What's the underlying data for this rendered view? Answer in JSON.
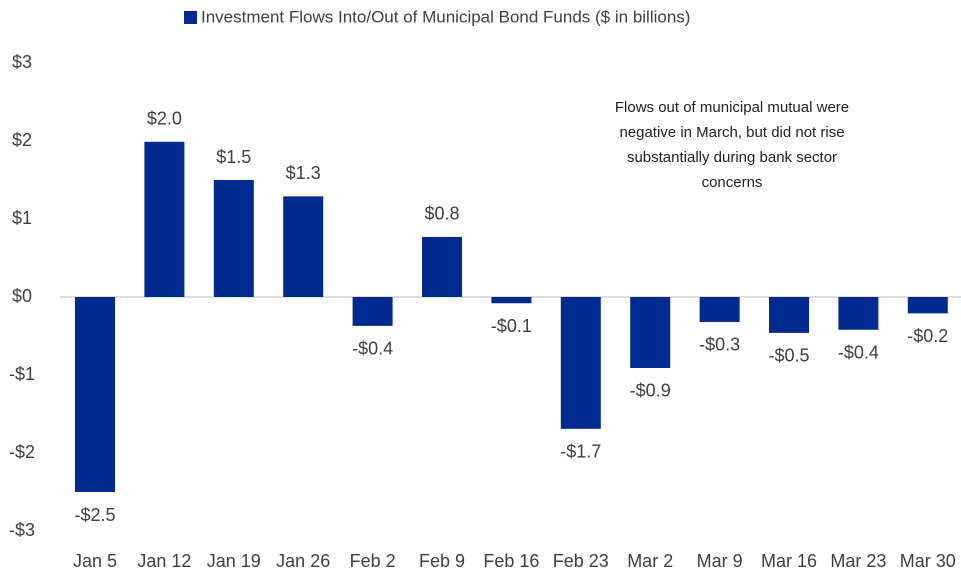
{
  "chart_data": {
    "type": "bar",
    "categories": [
      "Jan 5",
      "Jan 12",
      "Jan 19",
      "Jan 26",
      "Feb 2",
      "Feb 9",
      "Feb 16",
      "Feb 23",
      "Mar 2",
      "Mar 9",
      "Mar 16",
      "Mar 23",
      "Mar 30"
    ],
    "series": [
      {
        "name": "Investment Flows Into/Out of Municipal Bond Funds ($ in billions)",
        "color": "#002a8f",
        "values": [
          -2.5,
          1.99,
          1.5,
          1.29,
          -0.37,
          0.77,
          -0.08,
          -1.69,
          -0.91,
          -0.32,
          -0.46,
          -0.42,
          -0.21
        ],
        "value_labels": [
          "-$2.5",
          "$2.0",
          "$1.5",
          "$1.3",
          "-$0.4",
          "$0.8",
          "-$0.1",
          "-$1.7",
          "-$0.9",
          "-$0.3",
          "-$0.5",
          "-$0.4",
          "-$0.2"
        ]
      }
    ],
    "ylim": [
      -3,
      3
    ],
    "yticks": [
      {
        "value": 3,
        "label": "$3"
      },
      {
        "value": 2,
        "label": "$2"
      },
      {
        "value": 1,
        "label": "$1"
      },
      {
        "value": 0,
        "label": "$0"
      },
      {
        "value": -1,
        "label": "-$1"
      },
      {
        "value": -2,
        "label": "-$2"
      },
      {
        "value": -3,
        "label": "-$3"
      }
    ],
    "grid": false,
    "legend": "top",
    "annotation_lines": [
      "Flows out of municipal mutual were",
      "negative in March, but did not rise",
      "substantially during bank sector",
      "concerns"
    ]
  }
}
